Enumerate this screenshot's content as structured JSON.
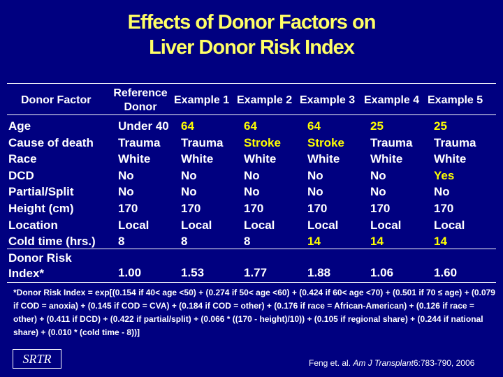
{
  "title": {
    "line1": "Effects of Donor Factors on",
    "line2": "Liver Donor Risk Index"
  },
  "table": {
    "headers": {
      "factor": "Donor Factor",
      "reference_line1": "Reference",
      "reference_line2": "Donor",
      "ex1": "Example 1",
      "ex2": "Example 2",
      "ex3": "Example 3",
      "ex4": "Example 4",
      "ex5": "Example 5"
    },
    "rows": [
      {
        "label": "Age",
        "ref": "Under 40",
        "ex1": "64",
        "ex2": "64",
        "ex3": "64",
        "ex4": "25",
        "ex5": "25"
      },
      {
        "label": "Cause of death",
        "ref": "Trauma",
        "ex1": "Trauma",
        "ex2": "Stroke",
        "ex3": "Stroke",
        "ex4": "Trauma",
        "ex5": "Trauma"
      },
      {
        "label": "Race",
        "ref": "White",
        "ex1": "White",
        "ex2": "White",
        "ex3": "White",
        "ex4": "White",
        "ex5": "White"
      },
      {
        "label": "DCD",
        "ref": "No",
        "ex1": "No",
        "ex2": "No",
        "ex3": "No",
        "ex4": "No",
        "ex5": "Yes"
      },
      {
        "label": "Partial/Split",
        "ref": "No",
        "ex1": "No",
        "ex2": "No",
        "ex3": "No",
        "ex4": "No",
        "ex5": "No"
      },
      {
        "label": "Height (cm)",
        "ref": "170",
        "ex1": "170",
        "ex2": "170",
        "ex3": "170",
        "ex4": "170",
        "ex5": "170"
      },
      {
        "label": "Location",
        "ref": "Local",
        "ex1": "Local",
        "ex2": "Local",
        "ex3": "Local",
        "ex4": "Local",
        "ex5": "Local"
      },
      {
        "label": "Cold time (hrs.)",
        "ref": "8",
        "ex1": "8",
        "ex2": "8",
        "ex3": "14",
        "ex4": "14",
        "ex5": "14"
      }
    ],
    "risk_row": {
      "label_line1": "Donor Risk",
      "label_line2": "Index*",
      "ref": "1.00",
      "ex1": "1.53",
      "ex2": "1.77",
      "ex3": "1.88",
      "ex4": "1.06",
      "ex5": "1.60"
    }
  },
  "footnote": "*Donor Risk Index = exp[(0.154 if 40< age <50) + (0.274 if 50< age <60) + (0.424 if 60< age <70) + (0.501 if 70 ≤ age) + (0.079 if COD = anoxia) + (0.145 if COD  = CVA) + (0.184 if COD = other) + (0.176 if race = African-American) + (0.126 if race = other) + (0.411 if DCD) + (0.422 if partial/split) + (0.066 * ((170 - height)/10)) + (0.105 if regional share) + (0.244 if national share) + (0.010 * (cold time - 8))]",
  "logo": "SRTR",
  "citation": {
    "authors": "Feng et. al.",
    "journal": "Am J Transplant",
    "ref": "6:783-790, 2006"
  },
  "colors": {
    "background": "#000080",
    "highlight": "#ffff00",
    "title": "#ffff66"
  }
}
